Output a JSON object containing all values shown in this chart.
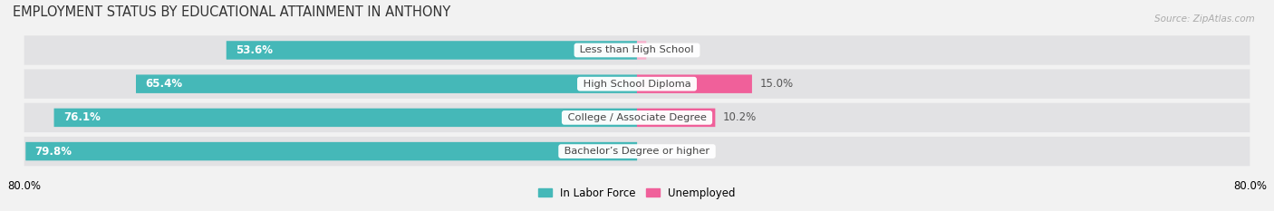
{
  "title": "EMPLOYMENT STATUS BY EDUCATIONAL ATTAINMENT IN ANTHONY",
  "source": "Source: ZipAtlas.com",
  "categories": [
    "Less than High School",
    "High School Diploma",
    "College / Associate Degree",
    "Bachelor’s Degree or higher"
  ],
  "labor_force": [
    53.6,
    65.4,
    76.1,
    79.8
  ],
  "unemployed": [
    1.2,
    15.0,
    10.2,
    0.0
  ],
  "labor_force_color": "#45b8b8",
  "unemployed_color_strong": "#f0609a",
  "unemployed_color_weak": "#f7b0cc",
  "background_color": "#f2f2f2",
  "bar_bg_color": "#e2e2e4",
  "xlim_left": -80.0,
  "xlim_right": 80.0,
  "title_fontsize": 10.5,
  "label_fontsize": 8.5,
  "bar_height": 0.52,
  "figsize": [
    14.06,
    2.33
  ],
  "dpi": 100,
  "x_tick_left_label": "80.0%",
  "x_tick_right_label": "80.0%"
}
